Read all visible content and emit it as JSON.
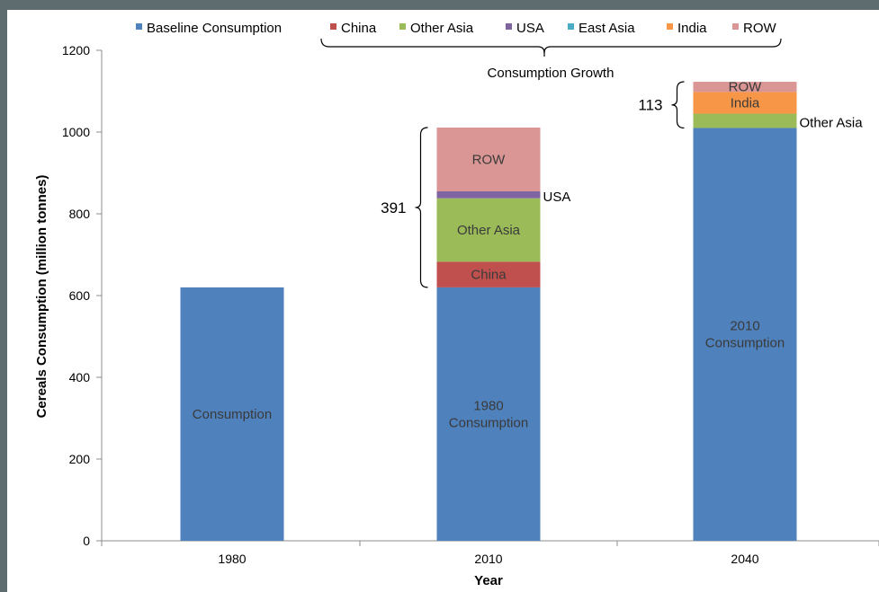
{
  "chart_data": {
    "type": "bar",
    "stacked": true,
    "categories": [
      "1980",
      "2010",
      "2040"
    ],
    "xlabel": "Year",
    "ylabel": "Cereals Consumption (million tonnes)",
    "ylim": [
      0,
      1200
    ],
    "yticks": [
      0,
      200,
      400,
      600,
      800,
      1000,
      1200
    ],
    "grid": false,
    "legend_position": "top",
    "series": [
      {
        "name": "Baseline Consumption",
        "color": "#4f81bd",
        "values": [
          620,
          620,
          1010
        ]
      },
      {
        "name": "China",
        "color": "#c0504d",
        "values": [
          0,
          63,
          0
        ]
      },
      {
        "name": "Other Asia",
        "color": "#9bbb59",
        "values": [
          0,
          155,
          35
        ]
      },
      {
        "name": "USA",
        "color": "#8064a2",
        "values": [
          0,
          17,
          0
        ]
      },
      {
        "name": "East Asia",
        "color": "#4bacc6",
        "values": [
          0,
          0,
          0
        ]
      },
      {
        "name": "India",
        "color": "#f79646",
        "values": [
          0,
          0,
          53
        ]
      },
      {
        "name": "ROW",
        "color": "#d99694",
        "values": [
          0,
          156,
          25
        ]
      }
    ],
    "segment_labels": [
      {
        "category": "1980",
        "series": "Baseline Consumption",
        "text": "Consumption",
        "placement": "inside"
      },
      {
        "category": "2010",
        "series": "Baseline Consumption",
        "text": "1980\nConsumption",
        "placement": "inside"
      },
      {
        "category": "2010",
        "series": "China",
        "text": "China",
        "placement": "inside"
      },
      {
        "category": "2010",
        "series": "Other Asia",
        "text": "Other Asia",
        "placement": "inside"
      },
      {
        "category": "2010",
        "series": "USA",
        "text": "USA",
        "placement": "right"
      },
      {
        "category": "2010",
        "series": "ROW",
        "text": "ROW",
        "placement": "inside"
      },
      {
        "category": "2040",
        "series": "Baseline Consumption",
        "text": "2010\nConsumption",
        "placement": "inside"
      },
      {
        "category": "2040",
        "series": "Other Asia",
        "text": "Other Asia",
        "placement": "right"
      },
      {
        "category": "2040",
        "series": "India",
        "text": "India",
        "placement": "inside"
      },
      {
        "category": "2040",
        "series": "ROW",
        "text": "ROW",
        "placement": "inside"
      }
    ],
    "annotations": [
      {
        "category": "2010",
        "text": "391",
        "type": "bracket"
      },
      {
        "category": "2040",
        "text": "113",
        "type": "bracket"
      }
    ],
    "legend_group": {
      "text": "Consumption Growth",
      "series": [
        "China",
        "Other Asia",
        "USA",
        "East Asia",
        "India",
        "ROW"
      ]
    }
  }
}
